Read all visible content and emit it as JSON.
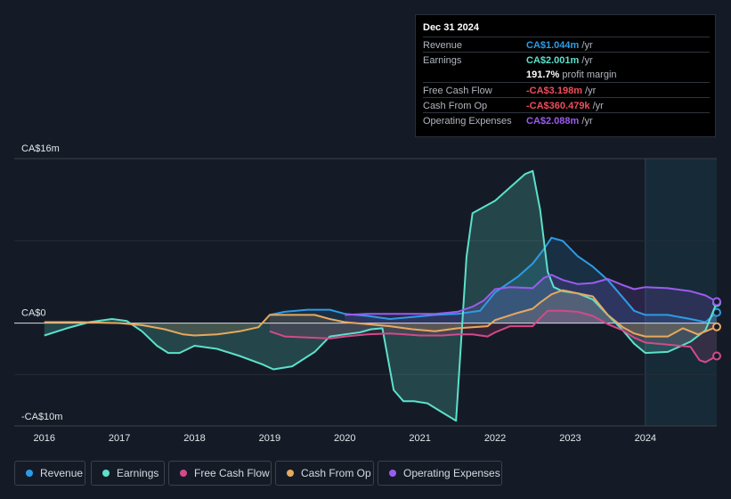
{
  "tooltip": {
    "date": "Dec 31 2024",
    "rows": [
      {
        "label": "Revenue",
        "value": "CA$1.044m",
        "unit": " /yr",
        "color": "#2e9be6"
      },
      {
        "label": "Earnings",
        "value": "CA$2.001m",
        "unit": " /yr",
        "color": "#5ce0cb"
      },
      {
        "label": "",
        "value": "191.7%",
        "unit": " profit margin",
        "color": "#ffffff"
      },
      {
        "label": "Free Cash Flow",
        "value": "-CA$3.198m",
        "unit": " /yr",
        "color": "#ef4d5b"
      },
      {
        "label": "Cash From Op",
        "value": "-CA$360.479k",
        "unit": " /yr",
        "color": "#ef4d5b"
      },
      {
        "label": "Operating Expenses",
        "value": "CA$2.088m",
        "unit": " /yr",
        "color": "#9b5cf0"
      }
    ]
  },
  "chart_data": {
    "type": "line",
    "title": "",
    "xlabel": "",
    "ylabel": "",
    "y_axis_labels": [
      "CA$16m",
      "CA$0",
      "-CA$10m"
    ],
    "ylim": [
      -10,
      16
    ],
    "xlim": [
      2015.6,
      2024.95
    ],
    "x_ticks": [
      "2016",
      "2017",
      "2018",
      "2019",
      "2020",
      "2021",
      "2022",
      "2023",
      "2024"
    ],
    "forecast_start": 2024.0,
    "series": [
      {
        "name": "Revenue",
        "color": "#2e9be6",
        "x": [
          2019.0,
          2019.2,
          2019.5,
          2019.8,
          2020.0,
          2020.3,
          2020.6,
          2020.9,
          2021.2,
          2021.5,
          2021.8,
          2022.0,
          2022.3,
          2022.5,
          2022.65,
          2022.75,
          2022.9,
          2023.1,
          2023.3,
          2023.5,
          2023.7,
          2023.85,
          2024.0,
          2024.3,
          2024.6,
          2024.8,
          2024.95
        ],
        "y": [
          0.8,
          1.1,
          1.3,
          1.3,
          0.9,
          0.7,
          0.4,
          0.6,
          0.8,
          0.9,
          1.2,
          3.0,
          4.5,
          5.8,
          7.2,
          8.3,
          8.0,
          6.5,
          5.5,
          4.2,
          2.5,
          1.2,
          0.8,
          0.8,
          0.4,
          0.1,
          1.04
        ]
      },
      {
        "name": "Earnings",
        "color": "#5ce0cb",
        "x": [
          2016.0,
          2016.3,
          2016.6,
          2016.9,
          2017.1,
          2017.3,
          2017.5,
          2017.65,
          2017.8,
          2018.0,
          2018.3,
          2018.6,
          2018.9,
          2019.05,
          2019.3,
          2019.6,
          2019.8,
          2020.0,
          2020.2,
          2020.35,
          2020.5,
          2020.65,
          2020.78,
          2020.92,
          2021.1,
          2021.3,
          2021.48,
          2021.55,
          2021.62,
          2021.7,
          2021.85,
          2022.0,
          2022.2,
          2022.4,
          2022.5,
          2022.6,
          2022.7,
          2022.78,
          2022.9,
          2023.1,
          2023.3,
          2023.5,
          2023.7,
          2023.85,
          2024.0,
          2024.3,
          2024.6,
          2024.8,
          2024.95
        ],
        "y": [
          -1.2,
          -0.5,
          0.1,
          0.4,
          0.2,
          -0.8,
          -2.2,
          -2.9,
          -2.9,
          -2.2,
          -2.5,
          -3.2,
          -4.0,
          -4.5,
          -4.2,
          -2.8,
          -1.3,
          -1.1,
          -0.9,
          -0.6,
          -0.5,
          -6.5,
          -7.6,
          -7.6,
          -7.8,
          -8.7,
          -9.5,
          -1.5,
          6.5,
          10.7,
          11.3,
          11.9,
          13.2,
          14.5,
          14.8,
          11.0,
          5.0,
          3.5,
          3.1,
          2.9,
          2.3,
          0.8,
          -0.7,
          -2.0,
          -2.9,
          -2.8,
          -1.8,
          -0.7,
          2.001
        ]
      },
      {
        "name": "Free Cash Flow",
        "color": "#d24a8a",
        "x": [
          2019.0,
          2019.2,
          2019.5,
          2019.8,
          2020.0,
          2020.3,
          2020.6,
          2020.8,
          2021.0,
          2021.3,
          2021.5,
          2021.7,
          2021.9,
          2022.0,
          2022.2,
          2022.5,
          2022.6,
          2022.7,
          2022.9,
          2023.1,
          2023.3,
          2023.5,
          2023.7,
          2023.85,
          2024.0,
          2024.3,
          2024.6,
          2024.72,
          2024.8,
          2024.95
        ],
        "y": [
          -0.8,
          -1.3,
          -1.4,
          -1.5,
          -1.3,
          -1.1,
          -1.0,
          -1.1,
          -1.2,
          -1.2,
          -1.1,
          -1.1,
          -1.3,
          -0.9,
          -0.3,
          -0.3,
          0.5,
          1.2,
          1.2,
          1.1,
          0.7,
          -0.1,
          -0.7,
          -1.4,
          -1.9,
          -2.1,
          -2.3,
          -3.6,
          -3.8,
          -3.198
        ]
      },
      {
        "name": "Cash From Op",
        "color": "#e8a85f",
        "x": [
          2016.0,
          2016.5,
          2017.0,
          2017.3,
          2017.6,
          2017.85,
          2018.0,
          2018.3,
          2018.6,
          2018.85,
          2019.0,
          2019.3,
          2019.6,
          2019.8,
          2020.0,
          2020.3,
          2020.6,
          2020.9,
          2021.2,
          2021.5,
          2021.7,
          2021.9,
          2022.0,
          2022.3,
          2022.5,
          2022.6,
          2022.75,
          2022.9,
          2023.1,
          2023.3,
          2023.5,
          2023.7,
          2023.85,
          2024.0,
          2024.3,
          2024.5,
          2024.7,
          2024.95
        ],
        "y": [
          0.1,
          0.1,
          0.0,
          -0.2,
          -0.6,
          -1.1,
          -1.2,
          -1.1,
          -0.8,
          -0.4,
          0.8,
          0.8,
          0.8,
          0.4,
          0.1,
          -0.1,
          -0.3,
          -0.6,
          -0.8,
          -0.5,
          -0.4,
          -0.3,
          0.3,
          1.0,
          1.4,
          2.0,
          2.8,
          3.2,
          2.9,
          2.6,
          0.8,
          -0.4,
          -1.0,
          -1.3,
          -1.3,
          -0.5,
          -1.1,
          -0.36
        ]
      },
      {
        "name": "Operating Expenses",
        "color": "#9b5cf0",
        "x": [
          2020.0,
          2020.3,
          2020.6,
          2020.9,
          2021.2,
          2021.5,
          2021.7,
          2021.85,
          2022.0,
          2022.2,
          2022.5,
          2022.65,
          2022.75,
          2022.9,
          2023.1,
          2023.3,
          2023.5,
          2023.7,
          2023.85,
          2024.0,
          2024.3,
          2024.6,
          2024.8,
          2024.95
        ],
        "y": [
          0.8,
          0.9,
          0.9,
          0.9,
          0.9,
          1.1,
          1.6,
          2.2,
          3.3,
          3.5,
          3.4,
          4.4,
          4.7,
          4.2,
          3.8,
          3.9,
          4.3,
          3.7,
          3.3,
          3.5,
          3.4,
          3.1,
          2.7,
          2.088
        ]
      }
    ]
  },
  "legend": [
    {
      "label": "Revenue",
      "color": "#2e9be6"
    },
    {
      "label": "Earnings",
      "color": "#5ce0cb"
    },
    {
      "label": "Free Cash Flow",
      "color": "#d24a8a"
    },
    {
      "label": "Cash From Op",
      "color": "#e8a85f"
    },
    {
      "label": "Operating Expenses",
      "color": "#9b5cf0"
    }
  ]
}
